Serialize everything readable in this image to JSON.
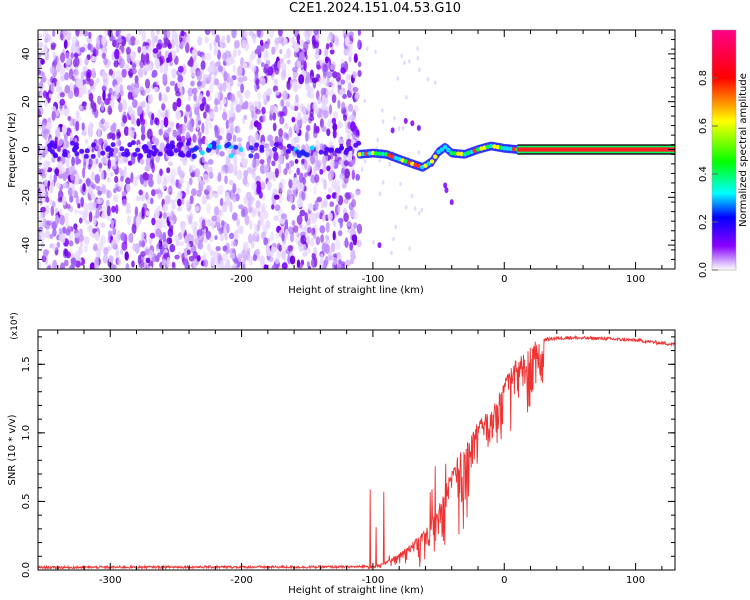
{
  "title": "C2E1.2024.151.04.53.G10",
  "chart_data": [
    {
      "type": "heatmap",
      "xlabel": "Height of straight line (km)",
      "ylabel": "Frequency (Hz)",
      "xlim": [
        -355,
        130
      ],
      "ylim": [
        -50,
        50
      ],
      "x_ticks": [
        -300,
        -200,
        -100,
        0,
        100
      ],
      "x_tick_labels": [
        "-300",
        "-200",
        "-100",
        "0",
        "100"
      ],
      "y_ticks": [
        -40,
        -20,
        0,
        20,
        40
      ],
      "y_tick_labels": [
        "-40",
        "-20",
        "0",
        "20",
        "40"
      ],
      "colorbar": {
        "label": "Normalized spectral amplitude",
        "range": [
          0,
          1
        ],
        "ticks": [
          0.0,
          0.2,
          0.4,
          0.6,
          0.8
        ],
        "tick_labels": [
          "0.0",
          "0.2",
          "0.4",
          "0.6",
          "0.8"
        ],
        "colors": [
          "#ffffff",
          "#8a00ff",
          "#0000ff",
          "#00ffff",
          "#00ff00",
          "#ffff00",
          "#ff0000",
          "#ff0088"
        ]
      },
      "noise_region_end": -110,
      "carrier_frequency_track": [
        [
          -110,
          -2
        ],
        [
          -100,
          -1.5
        ],
        [
          -90,
          -2
        ],
        [
          -80,
          -4
        ],
        [
          -70,
          -6
        ],
        [
          -62,
          -7.5
        ],
        [
          -55,
          -5
        ],
        [
          -50,
          -1
        ],
        [
          -45,
          1
        ],
        [
          -40,
          -1.5
        ],
        [
          -30,
          -2
        ],
        [
          -20,
          0
        ],
        [
          -10,
          1.5
        ],
        [
          0,
          0.5
        ],
        [
          10,
          0
        ],
        [
          50,
          0
        ],
        [
          130,
          0
        ]
      ]
    },
    {
      "type": "line",
      "xlabel": "Height of straight line (km)",
      "ylabel": "SNR (10 * v/v)",
      "y_multiplier_label": "(x10⁴)",
      "xlim": [
        -355,
        130
      ],
      "ylim": [
        0,
        1.75
      ],
      "x_ticks": [
        -300,
        -200,
        -100,
        0,
        100
      ],
      "x_tick_labels": [
        "-300",
        "-200",
        "-100",
        "0",
        "100"
      ],
      "y_ticks": [
        0.0,
        0.5,
        1.0,
        1.5
      ],
      "y_tick_labels": [
        "0.0",
        "0.5",
        "1.0",
        "1.5"
      ],
      "color": "#ee3333",
      "envelope": {
        "x": [
          -355,
          -250,
          -150,
          -110,
          -100,
          -90,
          -80,
          -70,
          -60,
          -50,
          -45,
          -40,
          -35,
          -30,
          -25,
          -20,
          -15,
          -10,
          -5,
          0,
          10,
          20,
          30,
          40,
          50,
          60,
          70,
          80,
          90,
          100,
          110,
          120,
          130
        ],
        "y": [
          0.015,
          0.018,
          0.018,
          0.02,
          0.03,
          0.06,
          0.12,
          0.2,
          0.3,
          0.45,
          0.6,
          0.75,
          0.85,
          0.9,
          1.0,
          1.08,
          1.12,
          1.18,
          1.25,
          1.38,
          1.55,
          1.64,
          1.68,
          1.69,
          1.695,
          1.69,
          1.69,
          1.685,
          1.68,
          1.675,
          1.665,
          1.655,
          1.645
        ]
      }
    }
  ]
}
